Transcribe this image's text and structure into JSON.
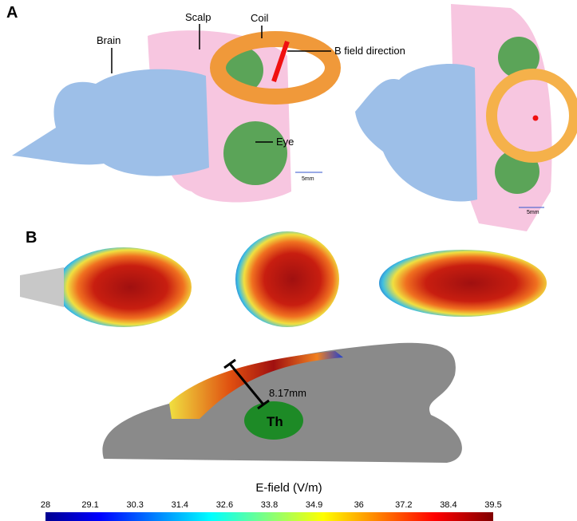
{
  "panel_a": {
    "label": "A",
    "annotations": {
      "brain": "Brain",
      "scalp": "Scalp",
      "coil": "Coil",
      "field": "B field direction",
      "eye": "Eye"
    },
    "scale_left": "5mm",
    "scale_right": "5mm"
  },
  "panel_b": {
    "label": "B",
    "distance": "8.17mm",
    "region": "Th"
  },
  "colorbar": {
    "title": "E-field (V/m)",
    "ticks": [
      28,
      29.1,
      30.3,
      31.4,
      32.6,
      33.8,
      34.9,
      36,
      37.2,
      38.4,
      39.5
    ]
  }
}
